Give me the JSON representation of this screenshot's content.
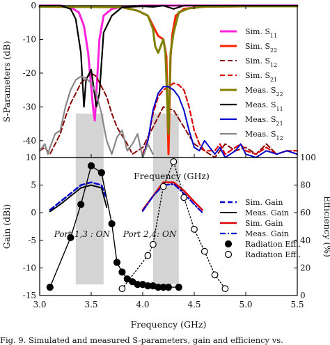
{
  "caption": "Fig. 9. Simulated and measured S-parameters, gain and efficiency vs.",
  "chart_data": [
    {
      "type": "line",
      "ylabel": "S-Parameters (dB)",
      "xlabel": "Frequency (GHz)",
      "xlim": [
        3.0,
        5.5
      ],
      "ylim": [
        -45,
        0
      ],
      "yticks": [
        0,
        -10,
        -20,
        -30,
        -40
      ],
      "shaded_bands": [
        [
          3.35,
          3.62
        ],
        [
          4.1,
          4.35
        ]
      ],
      "legend_position": "right",
      "series": [
        {
          "name": "Sim. S11",
          "color": "#ff22dd",
          "dash": "solid",
          "width": 3,
          "x": [
            3.0,
            3.2,
            3.3,
            3.38,
            3.43,
            3.47,
            3.5,
            3.52,
            3.535,
            3.55,
            3.58,
            3.62,
            3.7,
            3.8,
            4.0,
            4.5,
            5.5
          ],
          "y": [
            0,
            0,
            -0.5,
            -2,
            -6,
            -14,
            -24,
            -31,
            -34,
            -26,
            -10,
            -3,
            -1,
            -0.3,
            0,
            0,
            0
          ]
        },
        {
          "name": "Sim. S22",
          "color": "#ff2200",
          "dash": "solid",
          "width": 3,
          "x": [
            3.0,
            3.8,
            3.95,
            4.05,
            4.1,
            4.15,
            4.2,
            4.23,
            4.25,
            4.27,
            4.29,
            4.32,
            4.4,
            4.6,
            5.0,
            5.5
          ],
          "y": [
            -0.3,
            -0.5,
            -1.5,
            -3,
            -6,
            -9,
            -10,
            -15,
            -44,
            -15,
            -8,
            -3,
            -1,
            -0.3,
            -0.2,
            -0.2
          ]
        },
        {
          "name": "Sim. S12",
          "color": "#880000",
          "dash": "dashed",
          "width": 2,
          "x": [
            3.0,
            3.05,
            3.1,
            3.15,
            3.2,
            3.25,
            3.3,
            3.4,
            3.5,
            3.55,
            3.6,
            3.65,
            3.7,
            3.75,
            3.85,
            3.9,
            4.0,
            4.1,
            4.2,
            4.3,
            4.4,
            4.5,
            4.6,
            4.7,
            4.8,
            4.9,
            5.0,
            5.1,
            5.2,
            5.3,
            5.4,
            5.5
          ],
          "y": [
            -43,
            -42,
            -44,
            -41,
            -38,
            -33,
            -29,
            -23,
            -20,
            -21,
            -24,
            -27,
            -32,
            -36,
            -41,
            -44,
            -42,
            -36,
            -30,
            -31,
            -36,
            -41,
            -43,
            -45,
            -41,
            -43,
            -42,
            -44,
            -41,
            -44,
            -43,
            -44
          ]
        },
        {
          "name": "Sim. S21",
          "color": "#dd0000",
          "dash": "dashed",
          "width": 2.2,
          "x": [
            4.0,
            4.05,
            4.1,
            4.15,
            4.2,
            4.25,
            4.3,
            4.35,
            4.4,
            4.45,
            4.5,
            4.55,
            4.6,
            4.7,
            4.75,
            4.8,
            4.9,
            4.95,
            5.0,
            5.1,
            5.2,
            5.3,
            5.4,
            5.5
          ],
          "y": [
            -44,
            -40,
            -32,
            -27,
            -25,
            -24,
            -23,
            -23.5,
            -25,
            -30,
            -37,
            -41,
            -43,
            -43,
            -41,
            -44,
            -42,
            -41,
            -43,
            -44,
            -42,
            -44,
            -43,
            -43
          ]
        },
        {
          "name": "Meas. S22",
          "color": "#808000",
          "dash": "solid",
          "width": 3,
          "x": [
            3.0,
            3.8,
            3.95,
            4.05,
            4.1,
            4.12,
            4.15,
            4.2,
            4.22,
            4.25,
            4.27,
            4.3,
            4.35,
            4.45,
            4.6,
            5.0,
            5.5
          ],
          "y": [
            -0.3,
            -0.5,
            -1.5,
            -3,
            -7,
            -12,
            -14,
            -10,
            -14,
            -38,
            -14,
            -8,
            -2,
            -0.8,
            -0.3,
            -0.2,
            -0.2
          ]
        },
        {
          "name": "Meas. S11",
          "color": "#000000",
          "dash": "solid",
          "width": 2.2,
          "x": [
            3.0,
            3.2,
            3.3,
            3.35,
            3.4,
            3.43,
            3.45,
            3.5,
            3.55,
            3.58,
            3.62,
            3.7,
            3.8,
            4.0,
            4.1,
            4.2,
            4.3,
            4.4,
            4.6,
            5.0,
            5.5
          ],
          "y": [
            0,
            0,
            -1,
            -4,
            -14,
            -30,
            -22,
            -19,
            -30,
            -26,
            -8,
            -3,
            -0.5,
            -0.2,
            -0.4,
            0,
            -1,
            0,
            0,
            0,
            0
          ]
        },
        {
          "name": "Meas. S21",
          "color": "#0000cc",
          "dash": "solid",
          "width": 2,
          "x": [
            4.0,
            4.05,
            4.1,
            4.15,
            4.2,
            4.25,
            4.3,
            4.35,
            4.4,
            4.45,
            4.5,
            4.55,
            4.6,
            4.7,
            4.75,
            4.8,
            4.9,
            4.95,
            5.0,
            5.1,
            5.2,
            5.3,
            5.4,
            5.5
          ],
          "y": [
            -45,
            -40,
            -31,
            -26,
            -24,
            -24,
            -25,
            -27,
            -31,
            -37,
            -42,
            -43,
            -40,
            -44,
            -42,
            -45,
            -43,
            -41,
            -44,
            -45,
            -43,
            -44,
            -43,
            -44
          ]
        },
        {
          "name": "Meas. S12",
          "color": "#888888",
          "dash": "solid",
          "width": 2.2,
          "x": [
            3.0,
            3.05,
            3.08,
            3.1,
            3.15,
            3.2,
            3.25,
            3.3,
            3.35,
            3.4,
            3.45,
            3.5,
            3.55,
            3.6,
            3.65,
            3.7,
            3.75,
            3.8,
            3.85,
            3.9,
            3.95,
            4.0,
            4.05,
            4.1
          ],
          "y": [
            -43,
            -41,
            -44,
            -42,
            -38,
            -37,
            -30,
            -25,
            -22,
            -21,
            -21.5,
            -23,
            -26,
            -32,
            -40,
            -44,
            -39,
            -37,
            -43,
            -41,
            -38,
            -45,
            -41,
            -44
          ]
        }
      ]
    },
    {
      "type": "line",
      "xlabel": "Frequency (GHz)",
      "ylabel": "Gain (dBi)",
      "ylabel2": "Efficiency (%)",
      "xlim": [
        3.0,
        5.5
      ],
      "xticks": [
        "3.0",
        "3.5",
        "4.0",
        "4.5",
        "5.0",
        "5.5"
      ],
      "ylim": [
        -15,
        10
      ],
      "yticks": [
        10,
        5,
        0,
        -5,
        -10,
        -15
      ],
      "y2lim": [
        0,
        100
      ],
      "y2ticks": [
        100,
        80,
        60,
        40,
        20,
        0
      ],
      "annotations": [
        "Port 1,3 : ON",
        "Port 2,4: ON"
      ],
      "legend_position": "right",
      "series": [
        {
          "name": "Sim. Gain",
          "color": "#0000cc",
          "dash": "dashed",
          "width": 2.5,
          "axis": "left",
          "x": [
            3.1,
            3.2,
            3.3,
            3.4,
            3.5,
            3.6,
            3.64
          ],
          "y": [
            0.5,
            2,
            3.5,
            5,
            5.5,
            5,
            3
          ]
        },
        {
          "name": "Meas. Gain",
          "color": "#000000",
          "dash": "solid",
          "width": 2,
          "axis": "left",
          "x": [
            3.1,
            3.2,
            3.3,
            3.4,
            3.5,
            3.6,
            3.65
          ],
          "y": [
            0.2,
            1.5,
            3,
            4.5,
            5,
            4.5,
            1
          ]
        },
        {
          "name": "Sim. Gain",
          "color": "#dd0000",
          "dash": "solid",
          "width": 2.5,
          "axis": "left",
          "x": [
            4.0,
            4.1,
            4.2,
            4.3,
            4.4,
            4.5,
            4.58
          ],
          "y": [
            0.5,
            3,
            5.5,
            5.5,
            4,
            2,
            0.5
          ]
        },
        {
          "name": "Meas. Gain",
          "color": "#0000cc",
          "dash": "dashdot",
          "width": 2.2,
          "axis": "left",
          "x": [
            4.0,
            4.1,
            4.2,
            4.3,
            4.4,
            4.5,
            4.58
          ],
          "y": [
            0.3,
            3,
            5,
            5.2,
            3.5,
            1.5,
            0
          ]
        },
        {
          "name": "Radiation Effi.",
          "color": "#000000",
          "marker": "filled",
          "dash": "solid",
          "width": 1.4,
          "axis": "right",
          "x": [
            3.1,
            3.3,
            3.4,
            3.5,
            3.6,
            3.7,
            3.75,
            3.8,
            3.85,
            3.9,
            3.95,
            4.0,
            4.05,
            4.1,
            4.15,
            4.2,
            4.25,
            4.35
          ],
          "y": [
            6,
            42,
            66,
            94,
            89,
            52,
            24,
            17,
            12,
            10,
            8,
            8,
            7,
            7,
            6,
            6,
            6,
            6
          ]
        },
        {
          "name": "Radiation Effi.",
          "color": "#000000",
          "marker": "open",
          "dash": "dotted",
          "width": 1.4,
          "axis": "right",
          "x": [
            3.8,
            4.05,
            4.1,
            4.2,
            4.3,
            4.4,
            4.5,
            4.6,
            4.7,
            4.8
          ],
          "y": [
            5,
            29,
            37,
            79,
            97,
            71,
            48,
            32,
            15,
            5
          ]
        }
      ]
    }
  ]
}
